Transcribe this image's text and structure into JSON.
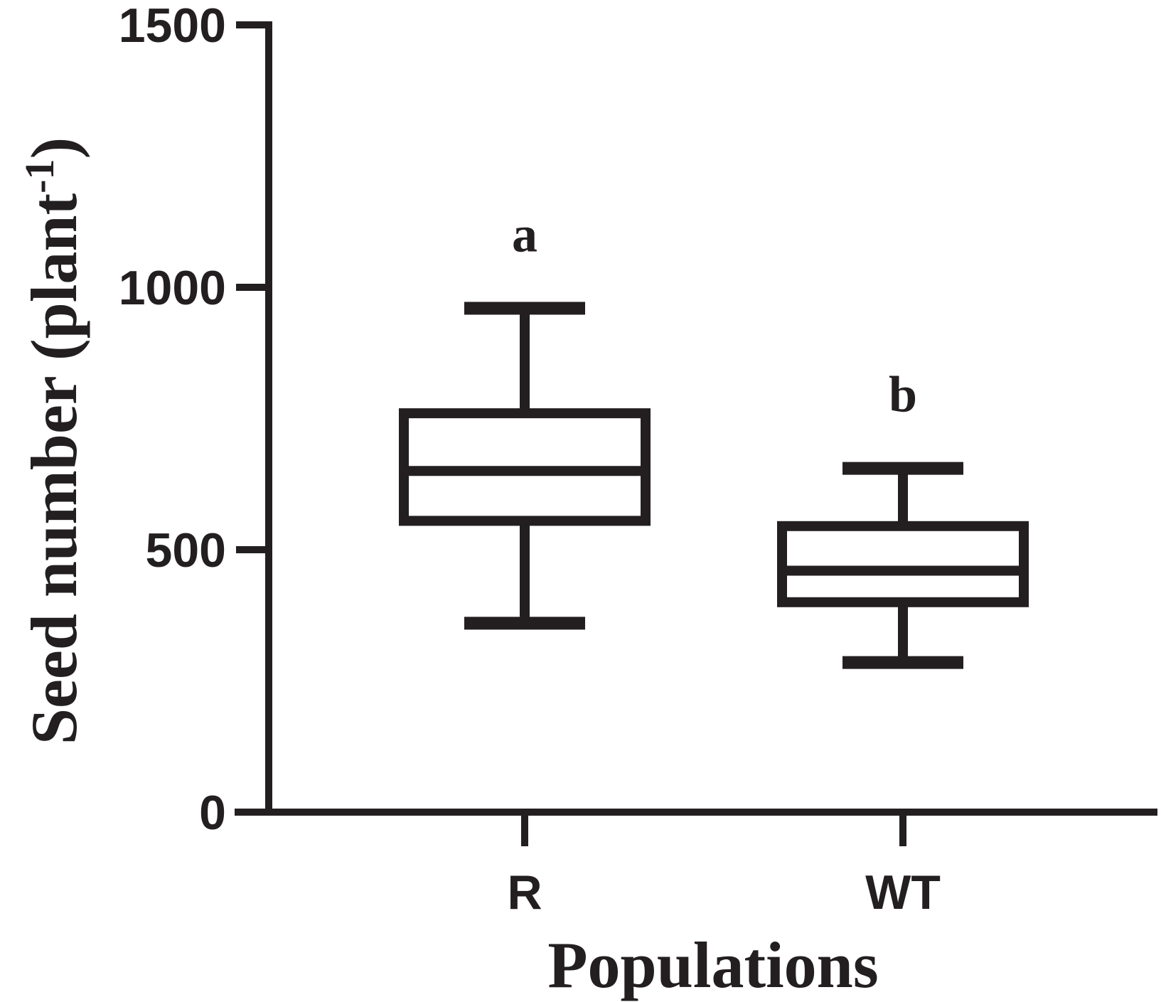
{
  "chart_data": {
    "type": "box",
    "xlabel": "Populations",
    "ylabel": "Seed number (plant",
    "ylabel_superscript": "-1",
    "ylabel_close": ")",
    "ylim": [
      0,
      1500
    ],
    "yticks": [
      "0",
      "500",
      "1000",
      "1500"
    ],
    "categories": [
      "R",
      "WT"
    ],
    "boxes": [
      {
        "category": "R",
        "min": 360,
        "q1": 555,
        "median": 650,
        "q3": 760,
        "max": 960,
        "letter": "a"
      },
      {
        "category": "WT",
        "min": 285,
        "q1": 400,
        "median": 460,
        "q3": 545,
        "max": 655,
        "letter": "b"
      }
    ],
    "grid": false,
    "legend": "none",
    "color": "#231f20"
  }
}
